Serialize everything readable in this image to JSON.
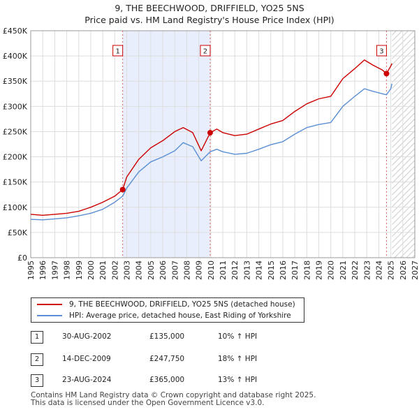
{
  "title_line1": "9, THE BEECHWOOD, DRIFFIELD, YO25 5NS",
  "title_line2": "Price paid vs. HM Land Registry's House Price Index (HPI)",
  "chart_data": {
    "type": "line",
    "xlim": [
      1995,
      2027
    ],
    "ylim": [
      0,
      450000
    ],
    "x_ticks": [
      "1995",
      "1996",
      "1997",
      "1998",
      "1999",
      "2000",
      "2001",
      "2002",
      "2003",
      "2004",
      "2005",
      "2006",
      "2007",
      "2008",
      "2009",
      "2010",
      "2011",
      "2012",
      "2013",
      "2014",
      "2015",
      "2016",
      "2017",
      "2018",
      "2019",
      "2020",
      "2021",
      "2022",
      "2023",
      "2024",
      "2025",
      "2026",
      "2027"
    ],
    "y_ticks": [
      {
        "value": 0,
        "label": "£0"
      },
      {
        "value": 50000,
        "label": "£50K"
      },
      {
        "value": 100000,
        "label": "£100K"
      },
      {
        "value": 150000,
        "label": "£150K"
      },
      {
        "value": 200000,
        "label": "£200K"
      },
      {
        "value": 250000,
        "label": "£250K"
      },
      {
        "value": 300000,
        "label": "£300K"
      },
      {
        "value": 350000,
        "label": "£350K"
      },
      {
        "value": 400000,
        "label": "£400K"
      },
      {
        "value": 450000,
        "label": "£450K"
      }
    ],
    "grid": true,
    "shaded_region": [
      2002.66,
      2009.95
    ],
    "future_hatch_from": 2025.1,
    "series": [
      {
        "name": "9, THE BEECHWOOD, DRIFFIELD, YO25 5NS (detached house)",
        "color": "#cc0000",
        "points": [
          [
            1995,
            86000
          ],
          [
            1996,
            84000
          ],
          [
            1997,
            86000
          ],
          [
            1998,
            88000
          ],
          [
            1999,
            92000
          ],
          [
            2000,
            100000
          ],
          [
            2001,
            110000
          ],
          [
            2002,
            122000
          ],
          [
            2002.66,
            135000
          ],
          [
            2003,
            160000
          ],
          [
            2004,
            195000
          ],
          [
            2005,
            218000
          ],
          [
            2006,
            232000
          ],
          [
            2007,
            250000
          ],
          [
            2007.7,
            258000
          ],
          [
            2008.5,
            248000
          ],
          [
            2009.2,
            212000
          ],
          [
            2009.95,
            247750
          ],
          [
            2010.5,
            255000
          ],
          [
            2011,
            248000
          ],
          [
            2012,
            242000
          ],
          [
            2013,
            245000
          ],
          [
            2014,
            255000
          ],
          [
            2015,
            265000
          ],
          [
            2016,
            272000
          ],
          [
            2017,
            290000
          ],
          [
            2018,
            305000
          ],
          [
            2019,
            315000
          ],
          [
            2020,
            320000
          ],
          [
            2021,
            355000
          ],
          [
            2022,
            375000
          ],
          [
            2022.8,
            392000
          ],
          [
            2023.5,
            382000
          ],
          [
            2024.3,
            372000
          ],
          [
            2024.64,
            365000
          ],
          [
            2025,
            380000
          ],
          [
            2025.1,
            385000
          ]
        ]
      },
      {
        "name": "HPI: Average price, detached house, East Riding of Yorkshire",
        "color": "#5b8fd4",
        "points": [
          [
            1995,
            76000
          ],
          [
            1996,
            75000
          ],
          [
            1997,
            77000
          ],
          [
            1998,
            79000
          ],
          [
            1999,
            83000
          ],
          [
            2000,
            88000
          ],
          [
            2001,
            96000
          ],
          [
            2002,
            110000
          ],
          [
            2002.66,
            122000
          ],
          [
            2003,
            138000
          ],
          [
            2004,
            170000
          ],
          [
            2005,
            190000
          ],
          [
            2006,
            200000
          ],
          [
            2007,
            212000
          ],
          [
            2007.7,
            228000
          ],
          [
            2008.5,
            220000
          ],
          [
            2009.2,
            192000
          ],
          [
            2009.95,
            210000
          ],
          [
            2010.5,
            215000
          ],
          [
            2011,
            210000
          ],
          [
            2012,
            205000
          ],
          [
            2013,
            207000
          ],
          [
            2014,
            215000
          ],
          [
            2015,
            224000
          ],
          [
            2016,
            230000
          ],
          [
            2017,
            245000
          ],
          [
            2018,
            258000
          ],
          [
            2019,
            264000
          ],
          [
            2020,
            268000
          ],
          [
            2021,
            300000
          ],
          [
            2022,
            320000
          ],
          [
            2022.8,
            335000
          ],
          [
            2023.5,
            330000
          ],
          [
            2024.3,
            325000
          ],
          [
            2024.64,
            323000
          ],
          [
            2025,
            335000
          ],
          [
            2025.1,
            345000
          ]
        ]
      }
    ],
    "sales": [
      {
        "num": "1",
        "x": 2002.66,
        "y": 135000
      },
      {
        "num": "2",
        "x": 2009.95,
        "y": 247750
      },
      {
        "num": "3",
        "x": 2024.64,
        "y": 365000
      }
    ]
  },
  "legend": {
    "red_label": "9, THE BEECHWOOD, DRIFFIELD, YO25 5NS (detached house)",
    "blue_label": "HPI: Average price, detached house, East Riding of Yorkshire"
  },
  "sales_table": [
    {
      "num": "1",
      "date": "30-AUG-2002",
      "price": "£135,000",
      "hpi": "10% ↑ HPI"
    },
    {
      "num": "2",
      "date": "14-DEC-2009",
      "price": "£247,750",
      "hpi": "18% ↑ HPI"
    },
    {
      "num": "3",
      "date": "23-AUG-2024",
      "price": "£365,000",
      "hpi": "13% ↑ HPI"
    }
  ],
  "footer_line1": "Contains HM Land Registry data © Crown copyright and database right 2025.",
  "footer_line2": "This data is licensed under the Open Government Licence v3.0."
}
